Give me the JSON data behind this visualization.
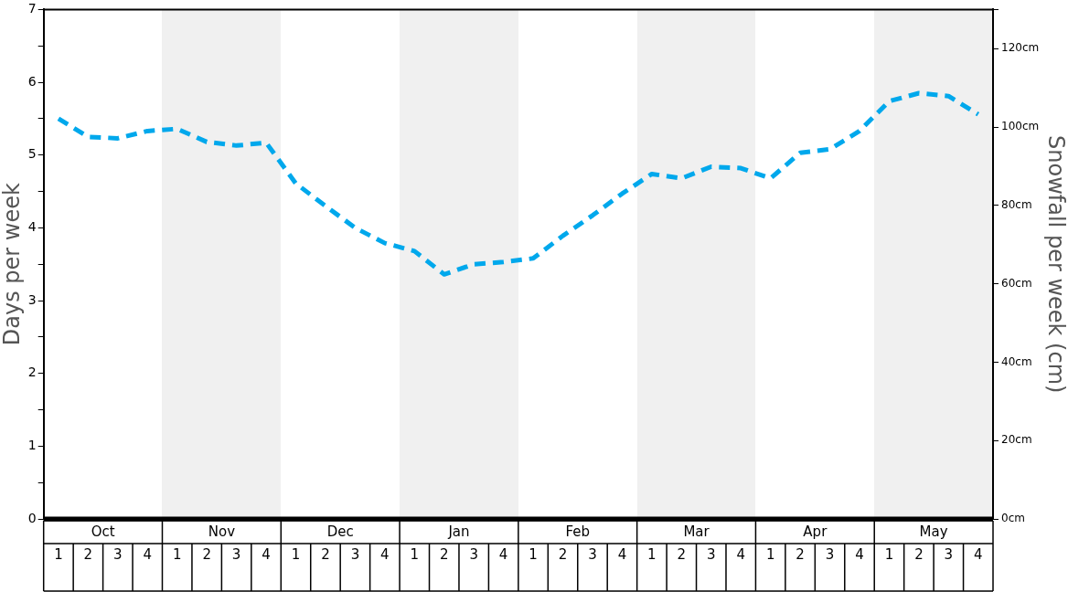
{
  "chart_data": {
    "type": "line",
    "ylabel": "Days per week",
    "y2label": "Snowfall per week (cm)",
    "categories": [
      "1",
      "2",
      "3",
      "4",
      "1",
      "2",
      "3",
      "4",
      "1",
      "2",
      "3",
      "4",
      "1",
      "2",
      "3",
      "4",
      "1",
      "2",
      "3",
      "4",
      "1",
      "2",
      "3",
      "4",
      "1",
      "2",
      "3",
      "4",
      "1",
      "2",
      "3",
      "4"
    ],
    "series": [
      {
        "color": "#00a8ec",
        "values": [
          5.5,
          5.25,
          5.23,
          5.33,
          5.36,
          5.18,
          5.13,
          5.17,
          4.61,
          4.3,
          4.0,
          3.79,
          3.68,
          3.36,
          3.5,
          3.53,
          3.58,
          3.89,
          4.17,
          4.47,
          4.74,
          4.68,
          4.84,
          4.82,
          4.68,
          5.03,
          5.08,
          5.33,
          5.74,
          5.85,
          5.81,
          5.56
        ]
      }
    ],
    "annotations": [
      "Oct",
      "Nov",
      "Dec",
      "Jan",
      "Feb",
      "Mar",
      "Apr",
      "May"
    ],
    "ylim": [
      0,
      7
    ],
    "yticks": [
      0,
      {
        "value": 0.5,
        "label": null
      },
      1,
      {
        "value": 1.5,
        "label": null
      },
      2,
      {
        "value": 2.5,
        "label": null
      },
      3,
      {
        "value": 3.5,
        "label": null
      },
      4,
      {
        "value": 4.5,
        "label": null
      },
      5,
      {
        "value": 5.5,
        "label": null
      },
      6,
      {
        "value": 6.5,
        "label": null
      },
      7
    ],
    "y2lim": [
      0,
      130
    ],
    "y2ticks": [
      {
        "value": 0,
        "label": "0cm"
      },
      {
        "value": 20,
        "label": "20cm"
      },
      {
        "value": 40,
        "label": "40cm"
      },
      {
        "value": 60,
        "label": "60cm"
      },
      {
        "value": 80,
        "label": "80cm"
      },
      {
        "value": 100,
        "label": "100cm"
      },
      {
        "value": 120,
        "label": "120cm"
      },
      {
        "value": 130,
        "label": null
      }
    ],
    "line_style": "dashed",
    "marker": "none"
  }
}
